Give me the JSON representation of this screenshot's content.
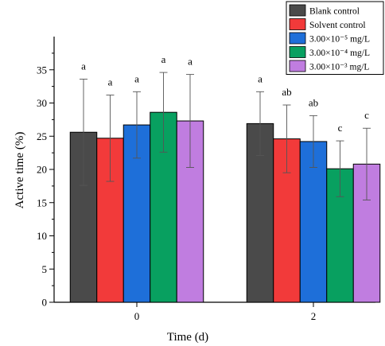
{
  "chart_data": {
    "type": "bar",
    "xlabel": "Time (d)",
    "ylabel": "Active time (%)",
    "ylim": [
      0,
      40
    ],
    "yticks": [
      "0",
      "5",
      "10",
      "15",
      "20",
      "25",
      "30",
      "35"
    ],
    "categories": [
      "0",
      "2"
    ],
    "legend_placement": "top-right",
    "series": [
      {
        "name": "Blank control",
        "color": "#4a4a4a",
        "values": [
          25.6,
          26.9
        ],
        "error": [
          8.0,
          4.8
        ],
        "sig": [
          "a",
          "a"
        ]
      },
      {
        "name": "Solvent control",
        "color": "#f23a3a",
        "values": [
          24.7,
          24.6
        ],
        "error": [
          6.5,
          5.1
        ],
        "sig": [
          "a",
          "ab"
        ]
      },
      {
        "name": "3.00×10⁻⁵ mg/L",
        "color": "#1e6fd9",
        "values": [
          26.7,
          24.2
        ],
        "error": [
          5.0,
          3.9
        ],
        "sig": [
          "a",
          "ab"
        ]
      },
      {
        "name": "3.00×10⁻⁴ mg/L",
        "color": "#08a060",
        "values": [
          28.6,
          20.1
        ],
        "error": [
          6.0,
          4.2
        ],
        "sig": [
          "a",
          "c"
        ]
      },
      {
        "name": "3.00×10⁻³ mg/L",
        "color": "#c07de0",
        "values": [
          27.3,
          20.8
        ],
        "error": [
          7.0,
          5.4
        ],
        "sig": [
          "a",
          "c"
        ]
      }
    ]
  }
}
